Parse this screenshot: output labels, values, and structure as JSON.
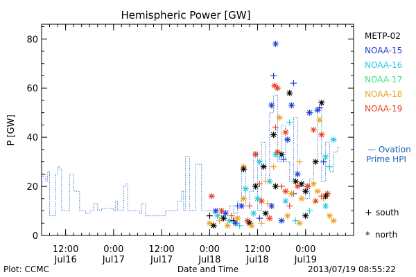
{
  "chart_data": {
    "type": "scatter",
    "title": "Hemispheric Power [GW]",
    "ylabel": "P [GW]",
    "xlabel": "Date and Time",
    "ylim": [
      0,
      86
    ],
    "xlim": [
      "2013-07-16T06:00",
      "2013-07-19T12:00"
    ],
    "yticks": [
      0,
      20,
      40,
      60,
      80
    ],
    "xticks": [
      {
        "t": "2013-07-16T12:00",
        "time": "12:00",
        "date": "Jul16"
      },
      {
        "t": "2013-07-17T00:00",
        "time": "0:00",
        "date": "Jul17"
      },
      {
        "t": "2013-07-17T12:00",
        "time": "12:00",
        "date": "Jul17"
      },
      {
        "t": "2013-07-18T00:00",
        "time": "0:00",
        "date": "Jul18"
      },
      {
        "t": "2013-07-18T12:00",
        "time": "12:00",
        "date": "Jul18"
      },
      {
        "t": "2013-07-19T00:00",
        "time": "0:00",
        "date": "Jul19"
      }
    ],
    "legend": [
      "METP-02",
      "NOAA-15",
      "NOAA-16",
      "NOAA-17",
      "NOAA-18",
      "NOAA-19"
    ],
    "marker_legend": {
      "south_symbol": "+",
      "south": "south",
      "north_symbol": "*",
      "north": "north"
    },
    "ovation_label_1": "— Ovation",
    "ovation_label_2": "Prime HPI",
    "footer_left": "Plot: CCMC",
    "footer_right": "2013/07/19 08:55:22",
    "colors": {
      "METP-02": "#000000",
      "NOAA-15": "#1f3fd0",
      "NOAA-16": "#29c8e0",
      "NOAA-17": "#3ee080",
      "NOAA-18": "#f0a020",
      "NOAA-19": "#e84020",
      "ovation": "#2060c0"
    },
    "ovation_series": [
      [
        "2013-07-16T06:00",
        24
      ],
      [
        "2013-07-16T06:30",
        25
      ],
      [
        "2013-07-16T07:00",
        22
      ],
      [
        "2013-07-16T07:30",
        26
      ],
      [
        "2013-07-16T08:00",
        8
      ],
      [
        "2013-07-16T09:00",
        8
      ],
      [
        "2013-07-16T09:30",
        25
      ],
      [
        "2013-07-16T10:00",
        28
      ],
      [
        "2013-07-16T10:30",
        27
      ],
      [
        "2013-07-16T11:00",
        10
      ],
      [
        "2013-07-16T12:30",
        10
      ],
      [
        "2013-07-16T13:00",
        25
      ],
      [
        "2013-07-16T13:30",
        25
      ],
      [
        "2013-07-16T14:00",
        18
      ],
      [
        "2013-07-16T15:00",
        18
      ],
      [
        "2013-07-16T15:30",
        10
      ],
      [
        "2013-07-16T17:00",
        9
      ],
      [
        "2013-07-16T18:00",
        10
      ],
      [
        "2013-07-16T19:00",
        13
      ],
      [
        "2013-07-16T20:00",
        10
      ],
      [
        "2013-07-16T21:00",
        11
      ],
      [
        "2013-07-17T00:00",
        10
      ],
      [
        "2013-07-17T00:30",
        14
      ],
      [
        "2013-07-17T01:00",
        10
      ],
      [
        "2013-07-17T02:00",
        10
      ],
      [
        "2013-07-17T02:30",
        20
      ],
      [
        "2013-07-17T03:00",
        21
      ],
      [
        "2013-07-17T03:30",
        10
      ],
      [
        "2013-07-17T06:00",
        10
      ],
      [
        "2013-07-17T06:30",
        9
      ],
      [
        "2013-07-17T07:00",
        13
      ],
      [
        "2013-07-17T08:00",
        8
      ],
      [
        "2013-07-17T12:00",
        8
      ],
      [
        "2013-07-17T13:00",
        10
      ],
      [
        "2013-07-17T15:00",
        10
      ],
      [
        "2013-07-17T16:00",
        14
      ],
      [
        "2013-07-17T17:00",
        18
      ],
      [
        "2013-07-17T17:30",
        10
      ],
      [
        "2013-07-17T18:00",
        32
      ],
      [
        "2013-07-17T18:30",
        32
      ],
      [
        "2013-07-17T19:00",
        10
      ],
      [
        "2013-07-17T20:00",
        10
      ],
      [
        "2013-07-17T20:30",
        29
      ],
      [
        "2013-07-17T21:00",
        29
      ],
      [
        "2013-07-17T22:00",
        10
      ],
      [
        "2013-07-18T00:00",
        10
      ],
      [
        "2013-07-18T01:00",
        9
      ],
      [
        "2013-07-18T02:00",
        11
      ],
      [
        "2013-07-18T03:00",
        8
      ],
      [
        "2013-07-18T04:00",
        10
      ],
      [
        "2013-07-18T05:00",
        12
      ],
      [
        "2013-07-18T06:00",
        9
      ],
      [
        "2013-07-18T07:00",
        14
      ],
      [
        "2013-07-18T08:00",
        26
      ],
      [
        "2013-07-18T09:00",
        12
      ],
      [
        "2013-07-18T10:00",
        18
      ],
      [
        "2013-07-18T11:00",
        34
      ],
      [
        "2013-07-18T12:00",
        10
      ],
      [
        "2013-07-18T13:00",
        38
      ],
      [
        "2013-07-18T14:00",
        22
      ],
      [
        "2013-07-18T15:00",
        50
      ],
      [
        "2013-07-18T16:00",
        57
      ],
      [
        "2013-07-18T17:00",
        30
      ],
      [
        "2013-07-18T18:00",
        45
      ],
      [
        "2013-07-18T19:00",
        30
      ],
      [
        "2013-07-18T20:00",
        22
      ],
      [
        "2013-07-18T21:00",
        48
      ],
      [
        "2013-07-18T22:00",
        20
      ],
      [
        "2013-07-19T00:00",
        15
      ],
      [
        "2013-07-19T01:00",
        23
      ],
      [
        "2013-07-19T02:00",
        30
      ],
      [
        "2013-07-19T03:00",
        52
      ],
      [
        "2013-07-19T04:00",
        22
      ],
      [
        "2013-07-19T05:00",
        38
      ],
      [
        "2013-07-19T06:00",
        26
      ],
      [
        "2013-07-19T07:00",
        34
      ],
      [
        "2013-07-19T08:00",
        36
      ]
    ],
    "points": [
      {
        "sat": "NOAA-15",
        "hemi": "north",
        "t": "2013-07-18T16:30",
        "y": 78
      },
      {
        "sat": "NOAA-15",
        "hemi": "south",
        "t": "2013-07-18T16:00",
        "y": 65
      },
      {
        "sat": "NOAA-19",
        "hemi": "north",
        "t": "2013-07-18T16:15",
        "y": 61
      },
      {
        "sat": "NOAA-19",
        "hemi": "north",
        "t": "2013-07-18T17:00",
        "y": 60
      },
      {
        "sat": "NOAA-15",
        "hemi": "south",
        "t": "2013-07-18T21:00",
        "y": 62
      },
      {
        "sat": "METP-02",
        "hemi": "north",
        "t": "2013-07-18T20:00",
        "y": 58
      },
      {
        "sat": "NOAA-15",
        "hemi": "north",
        "t": "2013-07-18T15:30",
        "y": 53
      },
      {
        "sat": "NOAA-15",
        "hemi": "north",
        "t": "2013-07-18T20:30",
        "y": 53
      },
      {
        "sat": "NOAA-18",
        "hemi": "north",
        "t": "2013-07-18T17:30",
        "y": 48
      },
      {
        "sat": "NOAA-16",
        "hemi": "south",
        "t": "2013-07-18T20:00",
        "y": 46
      },
      {
        "sat": "NOAA-19",
        "hemi": "north",
        "t": "2013-07-18T19:00",
        "y": 42
      },
      {
        "sat": "METP-02",
        "hemi": "north",
        "t": "2013-07-18T16:00",
        "y": 41
      },
      {
        "sat": "NOAA-15",
        "hemi": "north",
        "t": "2013-07-18T19:30",
        "y": 39
      },
      {
        "sat": "NOAA-19",
        "hemi": "south",
        "t": "2013-07-18T16:30",
        "y": 44
      },
      {
        "sat": "NOAA-15",
        "hemi": "north",
        "t": "2013-07-19T01:00",
        "y": 50
      },
      {
        "sat": "NOAA-15",
        "hemi": "north",
        "t": "2013-07-19T03:00",
        "y": 51
      },
      {
        "sat": "METP-02",
        "hemi": "north",
        "t": "2013-07-19T04:00",
        "y": 54
      },
      {
        "sat": "NOAA-15",
        "hemi": "south",
        "t": "2013-07-19T03:30",
        "y": 52
      },
      {
        "sat": "NOAA-19",
        "hemi": "north",
        "t": "2013-07-19T02:00",
        "y": 43
      },
      {
        "sat": "NOAA-18",
        "hemi": "north",
        "t": "2013-07-19T03:30",
        "y": 47
      },
      {
        "sat": "NOAA-19",
        "hemi": "north",
        "t": "2013-07-19T04:00",
        "y": 41
      },
      {
        "sat": "NOAA-16",
        "hemi": "north",
        "t": "2013-07-19T07:00",
        "y": 39
      },
      {
        "sat": "NOAA-16",
        "hemi": "north",
        "t": "2013-07-18T16:30",
        "y": 33
      },
      {
        "sat": "NOAA-19",
        "hemi": "north",
        "t": "2013-07-18T17:00",
        "y": 34
      },
      {
        "sat": "METP-02",
        "hemi": "north",
        "t": "2013-07-18T18:00",
        "y": 33
      },
      {
        "sat": "NOAA-19",
        "hemi": "north",
        "t": "2013-07-18T11:30",
        "y": 33
      },
      {
        "sat": "NOAA-16",
        "hemi": "north",
        "t": "2013-07-18T12:30",
        "y": 30
      },
      {
        "sat": "METP-02",
        "hemi": "north",
        "t": "2013-07-18T13:30",
        "y": 28
      },
      {
        "sat": "NOAA-18",
        "hemi": "north",
        "t": "2013-07-18T08:30",
        "y": 28
      },
      {
        "sat": "METP-02",
        "hemi": "north",
        "t": "2013-07-18T08:30",
        "y": 27
      },
      {
        "sat": "NOAA-15",
        "hemi": "south",
        "t": "2013-07-18T18:30",
        "y": 31
      },
      {
        "sat": "NOAA-16",
        "hemi": "south",
        "t": "2013-07-18T17:30",
        "y": 32
      },
      {
        "sat": "METP-02",
        "hemi": "north",
        "t": "2013-07-19T02:30",
        "y": 30
      },
      {
        "sat": "NOAA-16",
        "hemi": "north",
        "t": "2013-07-19T05:00",
        "y": 32
      },
      {
        "sat": "NOAA-15",
        "hemi": "south",
        "t": "2013-07-19T04:30",
        "y": 30
      },
      {
        "sat": "NOAA-18",
        "hemi": "south",
        "t": "2013-07-18T16:00",
        "y": 28
      },
      {
        "sat": "NOAA-15",
        "hemi": "north",
        "t": "2013-07-18T22:00",
        "y": 25
      },
      {
        "sat": "NOAA-18",
        "hemi": "south",
        "t": "2013-07-18T22:30",
        "y": 30
      },
      {
        "sat": "NOAA-16",
        "hemi": "north",
        "t": "2013-07-18T09:00",
        "y": 19
      },
      {
        "sat": "METP-02",
        "hemi": "north",
        "t": "2013-07-18T11:30",
        "y": 20
      },
      {
        "sat": "NOAA-19",
        "hemi": "south",
        "t": "2013-07-18T12:30",
        "y": 21
      },
      {
        "sat": "NOAA-16",
        "hemi": "north",
        "t": "2013-07-18T15:00",
        "y": 22
      },
      {
        "sat": "NOAA-18",
        "hemi": "south",
        "t": "2013-07-18T14:00",
        "y": 22
      },
      {
        "sat": "METP-02",
        "hemi": "north",
        "t": "2013-07-18T16:30",
        "y": 20
      },
      {
        "sat": "NOAA-19",
        "hemi": "south",
        "t": "2013-07-18T18:00",
        "y": 20
      },
      {
        "sat": "METP-02",
        "hemi": "north",
        "t": "2013-07-18T21:30",
        "y": 22
      },
      {
        "sat": "METP-02",
        "hemi": "north",
        "t": "2013-07-18T23:00",
        "y": 21
      },
      {
        "sat": "NOAA-19",
        "hemi": "north",
        "t": "2013-07-18T22:00",
        "y": 20
      },
      {
        "sat": "NOAA-19",
        "hemi": "north",
        "t": "2013-07-19T00:30",
        "y": 20
      },
      {
        "sat": "NOAA-18",
        "hemi": "north",
        "t": "2013-07-19T02:00",
        "y": 21
      },
      {
        "sat": "NOAA-16",
        "hemi": "south",
        "t": "2013-07-19T06:00",
        "y": 28
      },
      {
        "sat": "NOAA-19",
        "hemi": "north",
        "t": "2013-07-18T19:00",
        "y": 18
      },
      {
        "sat": "NOAA-15",
        "hemi": "south",
        "t": "2013-07-18T21:00",
        "y": 17
      },
      {
        "sat": "NOAA-18",
        "hemi": "north",
        "t": "2013-07-18T20:30",
        "y": 17
      },
      {
        "sat": "METP-02",
        "hemi": "north",
        "t": "2013-07-19T00:00",
        "y": 18
      },
      {
        "sat": "NOAA-18",
        "hemi": "north",
        "t": "2013-07-19T03:00",
        "y": 18
      },
      {
        "sat": "NOAA-15",
        "hemi": "south",
        "t": "2013-07-18T07:00",
        "y": 12
      },
      {
        "sat": "NOAA-15",
        "hemi": "north",
        "t": "2013-07-18T08:00",
        "y": 12
      },
      {
        "sat": "NOAA-18",
        "hemi": "north",
        "t": "2013-07-18T08:30",
        "y": 15
      },
      {
        "sat": "NOAA-19",
        "hemi": "south",
        "t": "2013-07-18T10:00",
        "y": 12
      },
      {
        "sat": "NOAA-16",
        "hemi": "north",
        "t": "2013-07-18T12:00",
        "y": 15
      },
      {
        "sat": "NOAA-19",
        "hemi": "north",
        "t": "2013-07-18T13:00",
        "y": 14
      },
      {
        "sat": "NOAA-18",
        "hemi": "south",
        "t": "2013-07-18T14:30",
        "y": 13
      },
      {
        "sat": "NOAA-15",
        "hemi": "north",
        "t": "2013-07-18T15:30",
        "y": 12
      },
      {
        "sat": "NOAA-16",
        "hemi": "north",
        "t": "2013-07-18T19:00",
        "y": 14
      },
      {
        "sat": "NOAA-19",
        "hemi": "south",
        "t": "2013-07-18T20:00",
        "y": 12
      },
      {
        "sat": "NOAA-18",
        "hemi": "north",
        "t": "2013-07-18T23:00",
        "y": 15
      },
      {
        "sat": "NOAA-19",
        "hemi": "north",
        "t": "2013-07-19T02:30",
        "y": 14
      },
      {
        "sat": "NOAA-16",
        "hemi": "north",
        "t": "2013-07-19T05:00",
        "y": 12
      },
      {
        "sat": "NOAA-19",
        "hemi": "north",
        "t": "2013-07-19T05:30",
        "y": 17
      },
      {
        "sat": "NOAA-18",
        "hemi": "south",
        "t": "2013-07-19T04:30",
        "y": 15
      },
      {
        "sat": "METP-02",
        "hemi": "north",
        "t": "2013-07-19T05:00",
        "y": 16
      },
      {
        "sat": "NOAA-19",
        "hemi": "south",
        "t": "2013-07-19T04:00",
        "y": 16
      },
      {
        "sat": "METP-02",
        "hemi": "south",
        "t": "2013-07-18T00:00",
        "y": 8
      },
      {
        "sat": "NOAA-18",
        "hemi": "north",
        "t": "2013-07-18T00:00",
        "y": 5
      },
      {
        "sat": "NOAA-19",
        "hemi": "north",
        "t": "2013-07-18T00:30",
        "y": 16
      },
      {
        "sat": "METP-02",
        "hemi": "north",
        "t": "2013-07-18T01:00",
        "y": 4
      },
      {
        "sat": "NOAA-15",
        "hemi": "north",
        "t": "2013-07-18T01:30",
        "y": 10
      },
      {
        "sat": "NOAA-16",
        "hemi": "north",
        "t": "2013-07-18T02:00",
        "y": 8
      },
      {
        "sat": "NOAA-18",
        "hemi": "south",
        "t": "2013-07-18T02:30",
        "y": 6
      },
      {
        "sat": "NOAA-19",
        "hemi": "north",
        "t": "2013-07-18T03:00",
        "y": 10
      },
      {
        "sat": "METP-02",
        "hemi": "north",
        "t": "2013-07-18T03:30",
        "y": 7
      },
      {
        "sat": "NOAA-15",
        "hemi": "north",
        "t": "2013-07-18T04:00",
        "y": 9
      },
      {
        "sat": "NOAA-18",
        "hemi": "north",
        "t": "2013-07-18T04:30",
        "y": 4
      },
      {
        "sat": "NOAA-16",
        "hemi": "north",
        "t": "2013-07-18T05:00",
        "y": 6
      },
      {
        "sat": "NOAA-19",
        "hemi": "south",
        "t": "2013-07-18T05:30",
        "y": 8
      },
      {
        "sat": "METP-02",
        "hemi": "south",
        "t": "2013-07-18T06:00",
        "y": 6
      },
      {
        "sat": "NOAA-15",
        "hemi": "north",
        "t": "2013-07-18T06:30",
        "y": 5
      },
      {
        "sat": "NOAA-18",
        "hemi": "north",
        "t": "2013-07-18T07:00",
        "y": 7
      },
      {
        "sat": "NOAA-16",
        "hemi": "south",
        "t": "2013-07-18T07:30",
        "y": 4
      },
      {
        "sat": "NOAA-19",
        "hemi": "north",
        "t": "2013-07-18T09:30",
        "y": 6
      },
      {
        "sat": "METP-02",
        "hemi": "north",
        "t": "2013-07-18T10:00",
        "y": 5
      },
      {
        "sat": "NOAA-18",
        "hemi": "north",
        "t": "2013-07-18T10:30",
        "y": 4
      },
      {
        "sat": "NOAA-16",
        "hemi": "north",
        "t": "2013-07-18T11:00",
        "y": 9
      },
      {
        "sat": "NOAA-15",
        "hemi": "south",
        "t": "2013-07-18T12:30",
        "y": 7
      },
      {
        "sat": "NOAA-18",
        "hemi": "south",
        "t": "2013-07-18T13:00",
        "y": 5
      },
      {
        "sat": "METP-02",
        "hemi": "north",
        "t": "2013-07-18T14:00",
        "y": 9
      },
      {
        "sat": "NOAA-19",
        "hemi": "north",
        "t": "2013-07-18T15:00",
        "y": 7
      },
      {
        "sat": "NOAA-15",
        "hemi": "north",
        "t": "2013-07-18T18:00",
        "y": 6
      },
      {
        "sat": "NOAA-18",
        "hemi": "north",
        "t": "2013-07-18T19:30",
        "y": 8
      },
      {
        "sat": "NOAA-16",
        "hemi": "south",
        "t": "2013-07-18T21:30",
        "y": 6
      },
      {
        "sat": "NOAA-18",
        "hemi": "north",
        "t": "2013-07-18T22:30",
        "y": 5
      },
      {
        "sat": "METP-02",
        "hemi": "north",
        "t": "2013-07-19T00:00",
        "y": 8
      },
      {
        "sat": "NOAA-16",
        "hemi": "south",
        "t": "2013-07-19T01:00",
        "y": 10
      },
      {
        "sat": "NOAA-18",
        "hemi": "north",
        "t": "2013-07-19T06:00",
        "y": 8
      },
      {
        "sat": "NOAA-18",
        "hemi": "north",
        "t": "2013-07-19T07:00",
        "y": 6
      }
    ]
  }
}
